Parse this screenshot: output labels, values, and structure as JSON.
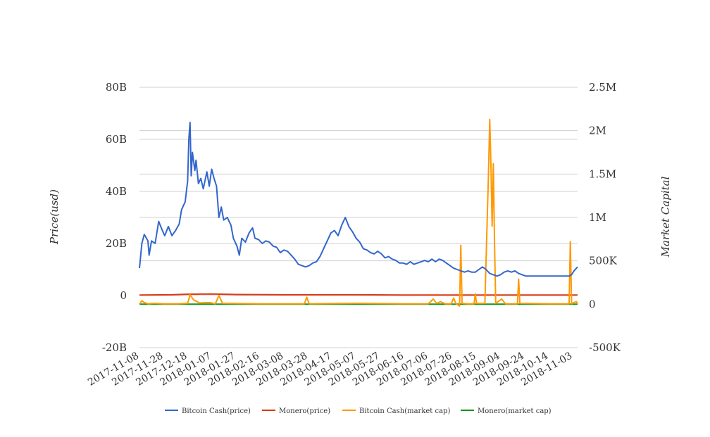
{
  "chart_data": {
    "type": "line",
    "title": "",
    "ylabel": "Price(usd)",
    "y2label": "Market Capital",
    "ylim": [
      -20000000000,
      80000000000
    ],
    "y2lim": [
      -500000,
      2500000
    ],
    "y_ticks": [
      "-20B",
      "0",
      "20B",
      "40B",
      "60B",
      "80B"
    ],
    "y2_ticks": [
      "-500K",
      "0",
      "500K",
      "1M",
      "1.5M",
      "2M",
      "2.5M"
    ],
    "x_ticks": [
      "2017-11-08",
      "2017-11-28",
      "2017-12-18",
      "2018-01-07",
      "2018-01-27",
      "2018-02-16",
      "2018-03-08",
      "2018-03-28",
      "2018-04-17",
      "2018-05-07",
      "2018-05-27",
      "2018-06-16",
      "2018-07-06",
      "2018-07-26",
      "2018-08-15",
      "2018-09-04",
      "2018-09-24",
      "2018-10-14",
      "2018-11-03"
    ],
    "x_start": "2017-11-08",
    "x_end": "2018-11-07",
    "legend_position": "bottom",
    "series": [
      {
        "name": "Bitcoin Cash(price)",
        "color": "#3366cc",
        "axis": "left",
        "points": [
          [
            "2017-11-08",
            10.5
          ],
          [
            "2017-11-10",
            20.0
          ],
          [
            "2017-11-12",
            23.5
          ],
          [
            "2017-11-15",
            21.0
          ],
          [
            "2017-11-16",
            15.5
          ],
          [
            "2017-11-18",
            21.0
          ],
          [
            "2017-11-21",
            20.0
          ],
          [
            "2017-11-24",
            28.5
          ],
          [
            "2017-11-27",
            25.0
          ],
          [
            "2017-11-29",
            23.0
          ],
          [
            "2017-12-02",
            26.5
          ],
          [
            "2017-12-05",
            23.0
          ],
          [
            "2017-12-08",
            25.0
          ],
          [
            "2017-12-11",
            27.5
          ],
          [
            "2017-12-13",
            33.0
          ],
          [
            "2017-12-16",
            36.0
          ],
          [
            "2017-12-18",
            44.0
          ],
          [
            "2017-12-19",
            60.0
          ],
          [
            "2017-12-20",
            66.5
          ],
          [
            "2017-12-21",
            46.0
          ],
          [
            "2017-12-22",
            55.0
          ],
          [
            "2017-12-24",
            48.0
          ],
          [
            "2017-12-25",
            52.0
          ],
          [
            "2017-12-27",
            43.0
          ],
          [
            "2017-12-29",
            45.0
          ],
          [
            "2017-12-31",
            41.0
          ],
          [
            "2018-01-03",
            47.5
          ],
          [
            "2018-01-05",
            42.0
          ],
          [
            "2018-01-07",
            48.5
          ],
          [
            "2018-01-09",
            45.0
          ],
          [
            "2018-01-11",
            42.0
          ],
          [
            "2018-01-13",
            30.0
          ],
          [
            "2018-01-15",
            34.0
          ],
          [
            "2018-01-17",
            29.0
          ],
          [
            "2018-01-20",
            30.0
          ],
          [
            "2018-01-23",
            27.0
          ],
          [
            "2018-01-25",
            22.0
          ],
          [
            "2018-01-28",
            19.0
          ],
          [
            "2018-01-30",
            15.5
          ],
          [
            "2018-02-01",
            22.0
          ],
          [
            "2018-02-04",
            20.5
          ],
          [
            "2018-02-07",
            24.0
          ],
          [
            "2018-02-10",
            26.0
          ],
          [
            "2018-02-12",
            22.0
          ],
          [
            "2018-02-15",
            21.5
          ],
          [
            "2018-02-18",
            20.0
          ],
          [
            "2018-02-21",
            21.0
          ],
          [
            "2018-02-24",
            20.5
          ],
          [
            "2018-02-27",
            19.0
          ],
          [
            "2018-03-02",
            18.5
          ],
          [
            "2018-03-05",
            16.5
          ],
          [
            "2018-03-08",
            17.5
          ],
          [
            "2018-03-11",
            17.0
          ],
          [
            "2018-03-14",
            15.5
          ],
          [
            "2018-03-17",
            14.0
          ],
          [
            "2018-03-20",
            12.0
          ],
          [
            "2018-03-23",
            11.5
          ],
          [
            "2018-03-26",
            11.0
          ],
          [
            "2018-03-29",
            11.5
          ],
          [
            "2018-04-01",
            12.5
          ],
          [
            "2018-04-04",
            13.0
          ],
          [
            "2018-04-07",
            15.0
          ],
          [
            "2018-04-10",
            18.0
          ],
          [
            "2018-04-13",
            21.0
          ],
          [
            "2018-04-16",
            24.0
          ],
          [
            "2018-04-19",
            25.0
          ],
          [
            "2018-04-22",
            23.0
          ],
          [
            "2018-04-25",
            27.0
          ],
          [
            "2018-04-28",
            30.0
          ],
          [
            "2018-05-01",
            26.5
          ],
          [
            "2018-05-04",
            24.5
          ],
          [
            "2018-05-07",
            22.0
          ],
          [
            "2018-05-10",
            20.5
          ],
          [
            "2018-05-13",
            18.0
          ],
          [
            "2018-05-16",
            17.5
          ],
          [
            "2018-05-19",
            16.5
          ],
          [
            "2018-05-22",
            16.0
          ],
          [
            "2018-05-25",
            17.0
          ],
          [
            "2018-05-28",
            16.0
          ],
          [
            "2018-05-31",
            14.5
          ],
          [
            "2018-06-03",
            15.0
          ],
          [
            "2018-06-06",
            14.0
          ],
          [
            "2018-06-09",
            13.5
          ],
          [
            "2018-06-12",
            12.5
          ],
          [
            "2018-06-15",
            12.5
          ],
          [
            "2018-06-18",
            12.0
          ],
          [
            "2018-06-21",
            13.0
          ],
          [
            "2018-06-24",
            12.0
          ],
          [
            "2018-06-27",
            12.5
          ],
          [
            "2018-06-30",
            13.0
          ],
          [
            "2018-07-03",
            13.5
          ],
          [
            "2018-07-06",
            13.0
          ],
          [
            "2018-07-09",
            14.0
          ],
          [
            "2018-07-12",
            13.0
          ],
          [
            "2018-07-15",
            14.0
          ],
          [
            "2018-07-18",
            13.5
          ],
          [
            "2018-07-21",
            12.5
          ],
          [
            "2018-07-24",
            11.5
          ],
          [
            "2018-07-27",
            10.5
          ],
          [
            "2018-07-30",
            10.0
          ],
          [
            "2018-08-02",
            9.5
          ],
          [
            "2018-08-05",
            9.0
          ],
          [
            "2018-08-08",
            9.5
          ],
          [
            "2018-08-11",
            9.0
          ],
          [
            "2018-08-14",
            9.0
          ],
          [
            "2018-08-17",
            10.0
          ],
          [
            "2018-08-20",
            11.0
          ],
          [
            "2018-08-23",
            10.0
          ],
          [
            "2018-08-26",
            8.5
          ],
          [
            "2018-08-29",
            8.0
          ],
          [
            "2018-09-01",
            7.5
          ],
          [
            "2018-09-04",
            8.0
          ],
          [
            "2018-09-07",
            9.0
          ],
          [
            "2018-09-10",
            9.5
          ],
          [
            "2018-09-13",
            9.0
          ],
          [
            "2018-09-16",
            9.5
          ],
          [
            "2018-09-19",
            8.5
          ],
          [
            "2018-09-22",
            8.0
          ],
          [
            "2018-09-25",
            7.5
          ],
          [
            "2018-09-28",
            7.5
          ],
          [
            "2018-10-01",
            7.5
          ],
          [
            "2018-10-04",
            7.5
          ],
          [
            "2018-10-07",
            7.5
          ],
          [
            "2018-10-10",
            7.5
          ],
          [
            "2018-10-13",
            7.5
          ],
          [
            "2018-10-16",
            7.5
          ],
          [
            "2018-10-19",
            7.5
          ],
          [
            "2018-10-22",
            7.5
          ],
          [
            "2018-10-25",
            7.5
          ],
          [
            "2018-10-28",
            7.5
          ],
          [
            "2018-10-31",
            7.5
          ],
          [
            "2018-11-02",
            8.0
          ],
          [
            "2018-11-04",
            9.5
          ],
          [
            "2018-11-07",
            11.0
          ]
        ]
      },
      {
        "name": "Monero(price)",
        "color": "#dc3912",
        "axis": "left",
        "points": [
          [
            "2017-11-08",
            0.2
          ],
          [
            "2017-12-05",
            0.3
          ],
          [
            "2017-12-18",
            0.5
          ],
          [
            "2018-01-07",
            0.6
          ],
          [
            "2018-01-27",
            0.4
          ],
          [
            "2018-03-08",
            0.3
          ],
          [
            "2018-04-17",
            0.3
          ],
          [
            "2018-05-07",
            0.3
          ],
          [
            "2018-06-16",
            0.2
          ],
          [
            "2018-08-15",
            0.2
          ],
          [
            "2018-09-24",
            0.2
          ],
          [
            "2018-11-07",
            0.2
          ]
        ]
      },
      {
        "name": "Bitcoin Cash(market cap)",
        "color": "#ff9900",
        "axis": "right",
        "points": [
          [
            "2017-11-08",
            0
          ],
          [
            "2017-11-10",
            40000
          ],
          [
            "2017-11-12",
            20000
          ],
          [
            "2017-11-15",
            5000
          ],
          [
            "2017-11-20",
            10000
          ],
          [
            "2017-11-28",
            5000
          ],
          [
            "2017-12-10",
            5000
          ],
          [
            "2017-12-18",
            10000
          ],
          [
            "2017-12-20",
            110000
          ],
          [
            "2017-12-23",
            50000
          ],
          [
            "2017-12-28",
            15000
          ],
          [
            "2018-01-05",
            20000
          ],
          [
            "2018-01-10",
            5000
          ],
          [
            "2018-01-13",
            100000
          ],
          [
            "2018-01-16",
            10000
          ],
          [
            "2018-02-16",
            5000
          ],
          [
            "2018-03-08",
            5000
          ],
          [
            "2018-03-25",
            5000
          ],
          [
            "2018-03-27",
            80000
          ],
          [
            "2018-03-29",
            5000
          ],
          [
            "2018-05-07",
            10000
          ],
          [
            "2018-06-16",
            5000
          ],
          [
            "2018-07-06",
            5000
          ],
          [
            "2018-07-10",
            60000
          ],
          [
            "2018-07-13",
            10000
          ],
          [
            "2018-07-16",
            30000
          ],
          [
            "2018-07-20",
            5000
          ],
          [
            "2018-07-25",
            5000
          ],
          [
            "2018-07-27",
            70000
          ],
          [
            "2018-07-29",
            5000
          ],
          [
            "2018-08-01",
            -20000
          ],
          [
            "2018-08-02",
            680000
          ],
          [
            "2018-08-03",
            10000
          ],
          [
            "2018-08-07",
            5000
          ],
          [
            "2018-08-13",
            5000
          ],
          [
            "2018-08-14",
            120000
          ],
          [
            "2018-08-15",
            10000
          ],
          [
            "2018-08-22",
            10000
          ],
          [
            "2018-08-25",
            1500000
          ],
          [
            "2018-08-26",
            2130000
          ],
          [
            "2018-08-27",
            1600000
          ],
          [
            "2018-08-28",
            900000
          ],
          [
            "2018-08-29",
            1620000
          ],
          [
            "2018-08-30",
            700000
          ],
          [
            "2018-08-31",
            10000
          ],
          [
            "2018-09-05",
            60000
          ],
          [
            "2018-09-08",
            5000
          ],
          [
            "2018-09-14",
            5000
          ],
          [
            "2018-09-18",
            5000
          ],
          [
            "2018-09-19",
            290000
          ],
          [
            "2018-09-20",
            10000
          ],
          [
            "2018-10-14",
            5000
          ],
          [
            "2018-10-31",
            5000
          ],
          [
            "2018-11-01",
            720000
          ],
          [
            "2018-11-02",
            5000
          ],
          [
            "2018-11-04",
            20000
          ],
          [
            "2018-11-06",
            30000
          ],
          [
            "2018-11-07",
            5000
          ]
        ]
      },
      {
        "name": "Monero(market cap)",
        "color": "#109618",
        "axis": "right",
        "points": [
          [
            "2017-11-08",
            0
          ],
          [
            "2018-02-16",
            0
          ],
          [
            "2018-05-07",
            0
          ],
          [
            "2018-08-15",
            0
          ],
          [
            "2018-11-07",
            0
          ]
        ]
      }
    ]
  }
}
